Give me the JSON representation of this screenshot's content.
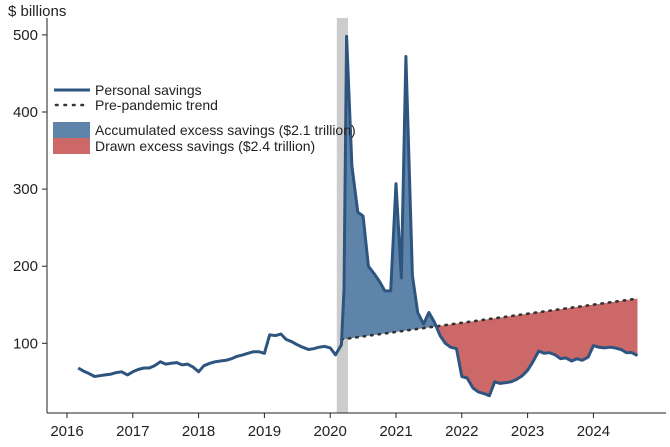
{
  "chart_data": {
    "type": "area",
    "ylabel": "$ billions",
    "x_ticks": [
      "2016",
      "2017",
      "2018",
      "2019",
      "2020",
      "2021",
      "2022",
      "2023",
      "2024"
    ],
    "y_ticks": [
      100,
      200,
      300,
      400,
      500
    ],
    "xlim": [
      2016.0,
      2025.0
    ],
    "ylim": [
      0,
      520
    ],
    "recession_band": [
      2020.1,
      2020.27
    ],
    "legend_position": "upper-left",
    "legend": [
      {
        "key": "savings",
        "label": "Personal savings",
        "style": "line",
        "color": "#2e5580"
      },
      {
        "key": "trend",
        "label": "Pre-pandemic trend",
        "style": "dotted",
        "color": "#333333"
      },
      {
        "key": "accumulated",
        "label": "Accumulated excess savings ($2.1 trillion)",
        "style": "area",
        "color": "#5f84aa"
      },
      {
        "key": "drawn",
        "label": "Drawn excess savings ($2.4 trillion)",
        "style": "area",
        "color": "#cd6868"
      }
    ],
    "colors": {
      "savings": "#2e5580",
      "trend": "#333333",
      "accumulated": "#5f84aa",
      "drawn": "#cd6868",
      "recession": "#cccccc"
    },
    "trend": {
      "start": [
        2020.17,
        105
      ],
      "end": [
        2024.67,
        158
      ]
    },
    "series": [
      {
        "name": "Personal savings",
        "points": [
          [
            2016.17,
            68
          ],
          [
            2016.25,
            64
          ],
          [
            2016.33,
            61
          ],
          [
            2016.42,
            57
          ],
          [
            2016.5,
            58
          ],
          [
            2016.58,
            59
          ],
          [
            2016.67,
            60
          ],
          [
            2016.75,
            62
          ],
          [
            2016.83,
            63
          ],
          [
            2016.92,
            59
          ],
          [
            2017.0,
            63
          ],
          [
            2017.08,
            66
          ],
          [
            2017.17,
            68
          ],
          [
            2017.25,
            68
          ],
          [
            2017.33,
            71
          ],
          [
            2017.42,
            76
          ],
          [
            2017.5,
            73
          ],
          [
            2017.58,
            74
          ],
          [
            2017.67,
            75
          ],
          [
            2017.75,
            72
          ],
          [
            2017.83,
            73
          ],
          [
            2017.92,
            69
          ],
          [
            2018.0,
            63
          ],
          [
            2018.08,
            71
          ],
          [
            2018.17,
            74
          ],
          [
            2018.25,
            76
          ],
          [
            2018.33,
            77
          ],
          [
            2018.42,
            78
          ],
          [
            2018.5,
            80
          ],
          [
            2018.58,
            83
          ],
          [
            2018.67,
            85
          ],
          [
            2018.75,
            87
          ],
          [
            2018.83,
            89
          ],
          [
            2018.92,
            89
          ],
          [
            2019.0,
            87
          ],
          [
            2019.08,
            111
          ],
          [
            2019.17,
            110
          ],
          [
            2019.25,
            112
          ],
          [
            2019.33,
            105
          ],
          [
            2019.42,
            102
          ],
          [
            2019.5,
            98
          ],
          [
            2019.58,
            95
          ],
          [
            2019.67,
            92
          ],
          [
            2019.75,
            93
          ],
          [
            2019.83,
            95
          ],
          [
            2019.92,
            96
          ],
          [
            2020.0,
            94
          ],
          [
            2020.08,
            85
          ],
          [
            2020.17,
            98
          ],
          [
            2020.21,
            170
          ],
          [
            2020.25,
            498
          ],
          [
            2020.33,
            330
          ],
          [
            2020.42,
            270
          ],
          [
            2020.5,
            265
          ],
          [
            2020.58,
            200
          ],
          [
            2020.67,
            190
          ],
          [
            2020.75,
            180
          ],
          [
            2020.83,
            168
          ],
          [
            2020.92,
            168
          ],
          [
            2021.0,
            307
          ],
          [
            2021.08,
            185
          ],
          [
            2021.15,
            472
          ],
          [
            2021.25,
            188
          ],
          [
            2021.33,
            140
          ],
          [
            2021.42,
            125
          ],
          [
            2021.5,
            140
          ],
          [
            2021.58,
            128
          ],
          [
            2021.67,
            110
          ],
          [
            2021.75,
            100
          ],
          [
            2021.83,
            95
          ],
          [
            2021.92,
            93
          ],
          [
            2022.0,
            57
          ],
          [
            2022.08,
            55
          ],
          [
            2022.17,
            42
          ],
          [
            2022.25,
            37
          ],
          [
            2022.33,
            35
          ],
          [
            2022.42,
            32
          ],
          [
            2022.5,
            50
          ],
          [
            2022.58,
            48
          ],
          [
            2022.67,
            49
          ],
          [
            2022.75,
            50
          ],
          [
            2022.83,
            53
          ],
          [
            2022.92,
            58
          ],
          [
            2023.0,
            65
          ],
          [
            2023.08,
            76
          ],
          [
            2023.17,
            90
          ],
          [
            2023.25,
            87
          ],
          [
            2023.33,
            88
          ],
          [
            2023.42,
            85
          ],
          [
            2023.5,
            80
          ],
          [
            2023.58,
            81
          ],
          [
            2023.67,
            77
          ],
          [
            2023.75,
            80
          ],
          [
            2023.83,
            78
          ],
          [
            2023.92,
            82
          ],
          [
            2024.0,
            97
          ],
          [
            2024.08,
            95
          ],
          [
            2024.17,
            94
          ],
          [
            2024.25,
            95
          ],
          [
            2024.33,
            94
          ],
          [
            2024.42,
            92
          ],
          [
            2024.5,
            88
          ],
          [
            2024.58,
            88
          ],
          [
            2024.67,
            84
          ]
        ]
      }
    ]
  }
}
